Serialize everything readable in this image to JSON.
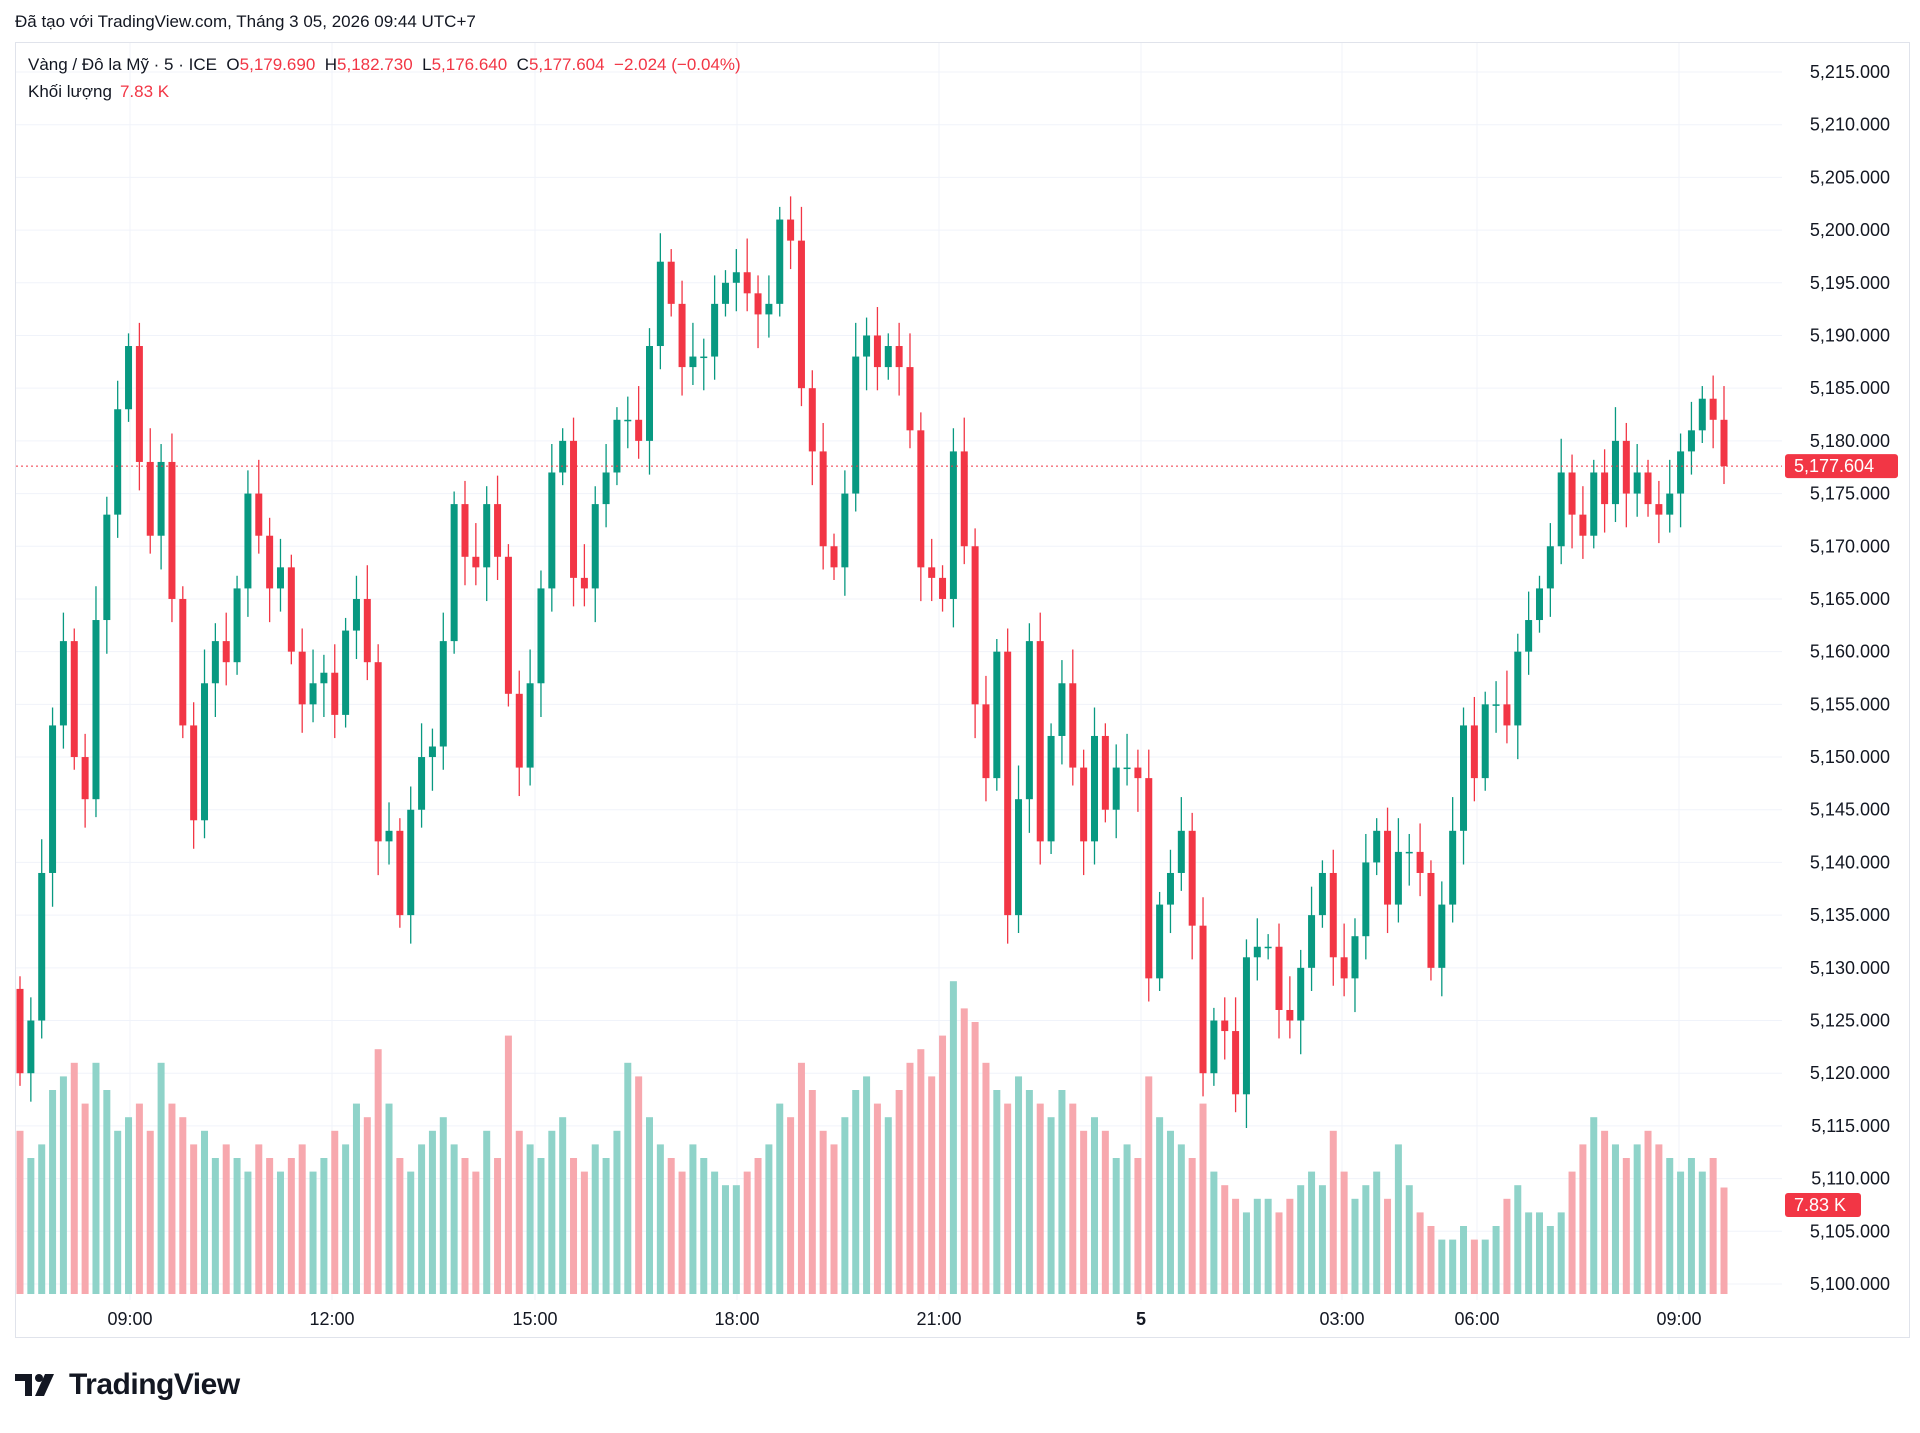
{
  "header": {
    "created": "Đã tạo với TradingView.com, Tháng 3 05, 2026 09:44 UTC+7"
  },
  "legend": {
    "symbol": "Vàng / Đô la Mỹ · 5 · ICE",
    "o_label": "O",
    "o": "5,179.690",
    "h_label": "H",
    "h": "5,182.730",
    "l_label": "L",
    "l": "5,176.640",
    "c_label": "C",
    "c": "5,177.604",
    "change": "−2.024 (−0.04%)",
    "volume_label": "Khối lượng",
    "volume": "7.83 K"
  },
  "logo": {
    "text": "TradingView"
  },
  "colors": {
    "up": "#089981",
    "down": "#f23645",
    "vol_up": "#8fd3c9",
    "vol_down": "#f7a8ae",
    "grid": "#f0f3fa"
  },
  "chart_data": {
    "type": "candlestick",
    "interval": "5",
    "ylim": [
      5100,
      5215
    ],
    "grid": true,
    "price_ticks": [
      "5,215.000",
      "5,210.000",
      "5,205.000",
      "5,200.000",
      "5,195.000",
      "5,190.000",
      "5,185.000",
      "5,180.000",
      "5,175.000",
      "5,170.000",
      "5,165.000",
      "5,160.000",
      "5,155.000",
      "5,150.000",
      "5,145.000",
      "5,140.000",
      "5,135.000",
      "5,130.000",
      "5,125.000",
      "5,120.000",
      "5,115.000",
      "5,110.000",
      "5,105.000",
      "5,100.000"
    ],
    "price_tick_values": [
      5215,
      5210,
      5205,
      5200,
      5195,
      5190,
      5185,
      5180,
      5175,
      5170,
      5165,
      5160,
      5155,
      5150,
      5145,
      5140,
      5135,
      5130,
      5125,
      5120,
      5115,
      5110,
      5105,
      5100
    ],
    "time_ticks": [
      "09:00",
      "12:00",
      "15:00",
      "18:00",
      "21:00",
      "5",
      "03:00",
      "06:00",
      "09:00"
    ],
    "last_price": 5177.604,
    "last_price_label": "5,177.604",
    "last_volume_label": "7.83 K",
    "open_first": 5128,
    "close": [
      5120,
      5125,
      5139,
      5153,
      5161,
      5150,
      5146,
      5163,
      5173,
      5183,
      5189,
      5178,
      5171,
      5178,
      5165,
      5153,
      5144,
      5157,
      5161,
      5159,
      5166,
      5175,
      5171,
      5166,
      5168,
      5160,
      5155,
      5157,
      5158,
      5154,
      5162,
      5165,
      5159,
      5142,
      5143,
      5135,
      5145,
      5150,
      5151,
      5161,
      5174,
      5169,
      5168,
      5174,
      5169,
      5156,
      5149,
      5157,
      5166,
      5177,
      5180,
      5167,
      5166,
      5174,
      5177,
      5182,
      5182,
      5180,
      5189,
      5197,
      5193,
      5187,
      5188,
      5188,
      5193,
      5195,
      5196,
      5194,
      5192,
      5193,
      5201,
      5199,
      5185,
      5179,
      5170,
      5168,
      5175,
      5188,
      5190,
      5187,
      5189,
      5187,
      5181,
      5168,
      5167,
      5165,
      5179,
      5170,
      5155,
      5148,
      5160,
      5135,
      5146,
      5161,
      5142,
      5152,
      5157,
      5149,
      5142,
      5152,
      5145,
      5149,
      5149,
      5148,
      5129,
      5136,
      5139,
      5143,
      5134,
      5120,
      5125,
      5124,
      5118,
      5131,
      5132,
      5132,
      5126,
      5125,
      5130,
      5135,
      5139,
      5131,
      5129,
      5133,
      5140,
      5143,
      5136,
      5141,
      5141,
      5139,
      5130,
      5136,
      5143,
      5153,
      5148,
      5155,
      5155,
      5153,
      5160,
      5163,
      5166,
      5170,
      5177,
      5173,
      5171,
      5177,
      5174,
      5180,
      5175,
      5177,
      5174,
      5173,
      5175,
      5179,
      5181,
      5184,
      5182,
      5177.604
    ],
    "volume_k": [
      12,
      10,
      11,
      15,
      16,
      17,
      14,
      17,
      15,
      12,
      13,
      14,
      12,
      17,
      14,
      13,
      11,
      12,
      10,
      11,
      10,
      9,
      11,
      10,
      9,
      10,
      11,
      9,
      10,
      12,
      11,
      14,
      13,
      18,
      14,
      10,
      9,
      11,
      12,
      13,
      11,
      10,
      9,
      12,
      10,
      19,
      12,
      11,
      10,
      12,
      13,
      10,
      9,
      11,
      10,
      12,
      17,
      16,
      13,
      11,
      10,
      9,
      11,
      10,
      9,
      8,
      8,
      9,
      10,
      11,
      14,
      13,
      17,
      15,
      12,
      11,
      13,
      15,
      16,
      14,
      13,
      15,
      17,
      18,
      16,
      19,
      23,
      21,
      20,
      17,
      15,
      14,
      16,
      15,
      14,
      13,
      15,
      14,
      12,
      13,
      12,
      10,
      11,
      10,
      16,
      13,
      12,
      11,
      10,
      14,
      9,
      8,
      7,
      6,
      7,
      7,
      6,
      7,
      8,
      9,
      8,
      12,
      9,
      7,
      8,
      9,
      7,
      11,
      8,
      6,
      5,
      4,
      4,
      5,
      4,
      4,
      5,
      7,
      8,
      6,
      6,
      5,
      6,
      9,
      11,
      13,
      12,
      11,
      10,
      11,
      12,
      11,
      10,
      9,
      10,
      9,
      10,
      7.83
    ]
  }
}
